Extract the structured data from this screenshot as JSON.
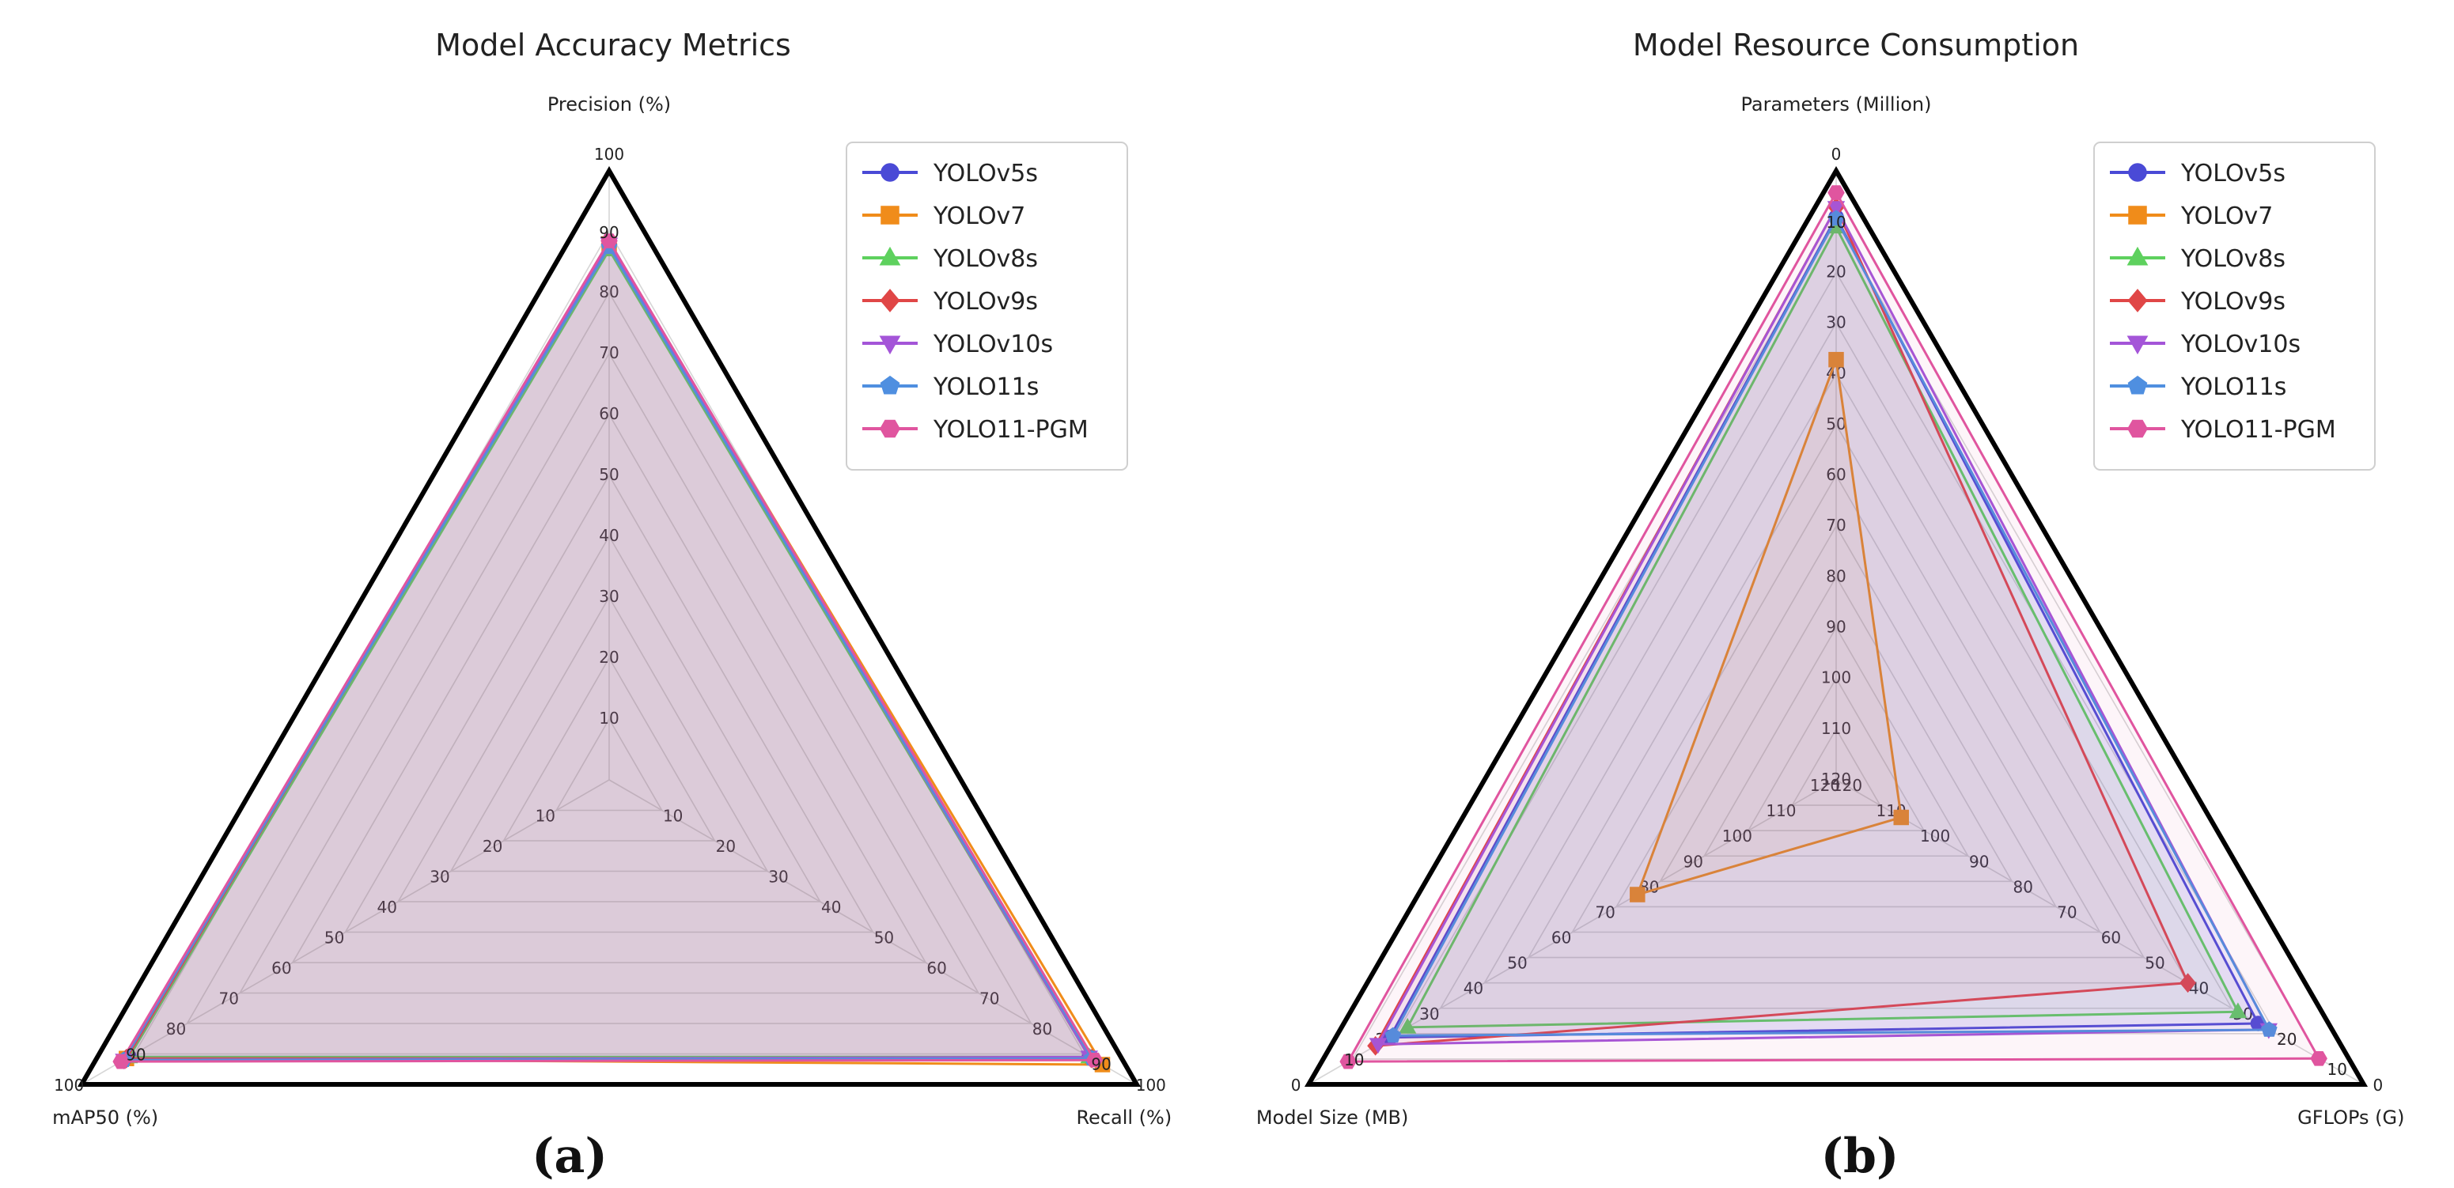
{
  "chart_data": [
    {
      "type": "radar",
      "title": "Model Accuracy Metrics",
      "caption": "(a)",
      "axes": [
        "Precision (%)",
        "Recall (%)",
        "mAP50 (%)"
      ],
      "range": [
        0,
        100
      ],
      "reversed": false,
      "top_labels": [
        "100",
        "90"
      ],
      "right_labels": [
        "100",
        "90"
      ],
      "left_labels": [
        "100",
        "90"
      ],
      "tick_labels": {
        "top": [
          "10",
          "20",
          "30",
          "40",
          "50",
          "60",
          "70",
          "80"
        ],
        "right": [
          "10",
          "20",
          "30",
          "40",
          "50",
          "60",
          "70",
          "80"
        ],
        "left": [
          "10",
          "20",
          "30",
          "40",
          "50",
          "60",
          "70",
          "80"
        ]
      },
      "series": [
        {
          "name": "YOLOv5s",
          "values": [
            87.5,
            91.0,
            91.0
          ]
        },
        {
          "name": "YOLOv7",
          "values": [
            88.0,
            93.5,
            91.5
          ]
        },
        {
          "name": "YOLOv8s",
          "values": [
            87.0,
            91.0,
            91.0
          ]
        },
        {
          "name": "YOLOv9s",
          "values": [
            88.0,
            91.5,
            91.5
          ]
        },
        {
          "name": "YOLOv10s",
          "values": [
            88.0,
            91.0,
            92.0
          ]
        },
        {
          "name": "YOLO11s",
          "values": [
            87.5,
            91.5,
            92.0
          ]
        },
        {
          "name": "YOLO11-PGM",
          "values": [
            88.5,
            92.0,
            92.5
          ]
        }
      ]
    },
    {
      "type": "radar",
      "title": "Model Resource Consumption",
      "caption": "(b)",
      "axes": [
        "Parameters (Million)",
        "GFLOPs (G)",
        "Model Size (MB)"
      ],
      "range": [
        0,
        120
      ],
      "reversed": true,
      "top_labels": [
        "0",
        "10"
      ],
      "right_labels": [
        "0",
        "10"
      ],
      "left_labels": [
        "0",
        "10"
      ],
      "tick_labels": {
        "top": [
          "20",
          "30",
          "40",
          "50",
          "60",
          "70",
          "80",
          "90",
          "100",
          "110",
          "120"
        ],
        "right": [
          "20",
          "30",
          "40",
          "50",
          "60",
          "70",
          "80",
          "90",
          "100",
          "110",
          "120"
        ],
        "left": [
          "20",
          "30",
          "40",
          "50",
          "60",
          "70",
          "80",
          "90",
          "100",
          "110",
          "120"
        ]
      },
      "series": [
        {
          "name": "YOLOv5s",
          "values": [
            9.1,
            24.0,
            18.5
          ]
        },
        {
          "name": "YOLOv7",
          "values": [
            37.2,
            105.2,
            74.8
          ]
        },
        {
          "name": "YOLOv8s",
          "values": [
            11.1,
            28.6,
            22.5
          ]
        },
        {
          "name": "YOLOv9s",
          "values": [
            7.2,
            40.0,
            15.2
          ]
        },
        {
          "name": "YOLOv10s",
          "values": [
            7.2,
            21.6,
            15.8
          ]
        },
        {
          "name": "YOLO11s",
          "values": [
            9.4,
            21.5,
            19.2
          ]
        },
        {
          "name": "YOLO11-PGM",
          "values": [
            4.3,
            10.2,
            9.0
          ]
        }
      ]
    }
  ],
  "legend": {
    "entries": [
      "YOLOv5s",
      "YOLOv7",
      "YOLOv8s",
      "YOLOv9s",
      "YOLOv10s",
      "YOLO11s",
      "YOLO11-PGM"
    ],
    "colors": [
      "#4a4ad6",
      "#f08c1a",
      "#5ed15e",
      "#e04646",
      "#a455d8",
      "#4f8fe0",
      "#e0559f"
    ],
    "markers": [
      "circle",
      "square",
      "triangle",
      "diamond",
      "triangle-down",
      "pentagon",
      "hexagon"
    ]
  }
}
